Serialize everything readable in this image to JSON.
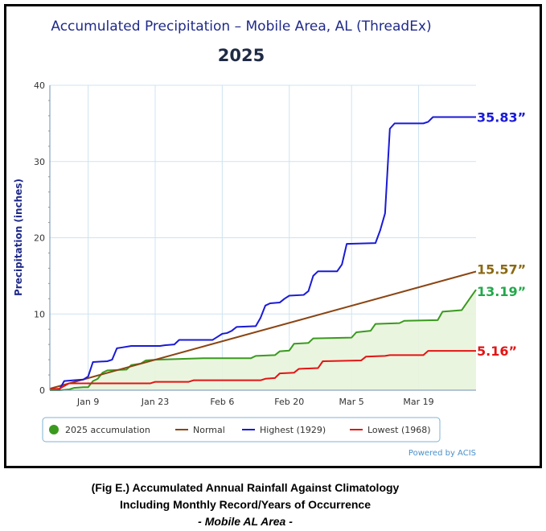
{
  "chart_data": {
    "type": "line",
    "title": "Accumulated Precipitation – Mobile Area, AL (ThreadEx)",
    "subtitle": "2025",
    "ylabel": "Precipitation (inches)",
    "ylim": [
      0,
      40
    ],
    "yticks": [
      "0",
      "10",
      "20",
      "30",
      "40"
    ],
    "xlim": [
      1,
      87
    ],
    "xticks": [
      {
        "day": 9,
        "label": "Jan 9"
      },
      {
        "day": 23,
        "label": "Jan 23"
      },
      {
        "day": 37,
        "label": "Feb 6"
      },
      {
        "day": 51,
        "label": "Feb 20"
      },
      {
        "day": 64,
        "label": "Mar 5"
      },
      {
        "day": 78,
        "label": "Mar 19"
      }
    ],
    "grid": true,
    "legend_position": "bottom",
    "series": [
      {
        "name": "2025 accumulation",
        "color": "#3a9a1e",
        "fill": "#e8f4dc",
        "values": [
          [
            1,
            0.0
          ],
          [
            3,
            0.0
          ],
          [
            5,
            0.1
          ],
          [
            6,
            0.3
          ],
          [
            8,
            0.4
          ],
          [
            9,
            0.4
          ],
          [
            10,
            1.2
          ],
          [
            11,
            1.5
          ],
          [
            12,
            2.3
          ],
          [
            13,
            2.6
          ],
          [
            17,
            2.7
          ],
          [
            18,
            3.3
          ],
          [
            20,
            3.5
          ],
          [
            21,
            3.9
          ],
          [
            23,
            4.0
          ],
          [
            33,
            4.2
          ],
          [
            43,
            4.2
          ],
          [
            44,
            4.5
          ],
          [
            48,
            4.6
          ],
          [
            49,
            5.1
          ],
          [
            51,
            5.2
          ],
          [
            52,
            6.1
          ],
          [
            55,
            6.2
          ],
          [
            56,
            6.8
          ],
          [
            64,
            6.9
          ],
          [
            65,
            7.6
          ],
          [
            68,
            7.8
          ],
          [
            69,
            8.7
          ],
          [
            74,
            8.8
          ],
          [
            75,
            9.1
          ],
          [
            82,
            9.2
          ],
          [
            83,
            10.3
          ],
          [
            87,
            10.5
          ],
          [
            89,
            12.3
          ],
          [
            90,
            13.19
          ]
        ]
      },
      {
        "name": "Normal",
        "color": "#8b4513",
        "values": [
          [
            1,
            0.2
          ],
          [
            90,
            15.57
          ]
        ]
      },
      {
        "name": "Highest (1929)",
        "color": "#1a1ad6",
        "values": [
          [
            1,
            0.1
          ],
          [
            3,
            0.1
          ],
          [
            4,
            1.2
          ],
          [
            6,
            1.3
          ],
          [
            8,
            1.4
          ],
          [
            9,
            1.8
          ],
          [
            10,
            3.7
          ],
          [
            13,
            3.8
          ],
          [
            14,
            4.0
          ],
          [
            15,
            5.5
          ],
          [
            16,
            5.6
          ],
          [
            18,
            5.8
          ],
          [
            24,
            5.8
          ],
          [
            25,
            5.9
          ],
          [
            27,
            6.0
          ],
          [
            28,
            6.6
          ],
          [
            35,
            6.6
          ],
          [
            36,
            7.0
          ],
          [
            37,
            7.4
          ],
          [
            38,
            7.5
          ],
          [
            39,
            7.8
          ],
          [
            40,
            8.3
          ],
          [
            44,
            8.4
          ],
          [
            45,
            9.5
          ],
          [
            46,
            11.1
          ],
          [
            47,
            11.4
          ],
          [
            49,
            11.5
          ],
          [
            50,
            12.0
          ],
          [
            51,
            12.4
          ],
          [
            54,
            12.5
          ],
          [
            55,
            13.0
          ],
          [
            56,
            15.0
          ],
          [
            57,
            15.6
          ],
          [
            61,
            15.6
          ],
          [
            62,
            16.5
          ],
          [
            63,
            19.2
          ],
          [
            69,
            19.3
          ],
          [
            70,
            21.0
          ],
          [
            71,
            23.2
          ],
          [
            72,
            34.3
          ],
          [
            73,
            35.0
          ],
          [
            79,
            35.0
          ],
          [
            80,
            35.2
          ],
          [
            81,
            35.83
          ],
          [
            90,
            35.83
          ]
        ]
      },
      {
        "name": "Lowest (1968)",
        "color": "#e31414",
        "values": [
          [
            1,
            0.1
          ],
          [
            3,
            0.2
          ],
          [
            5,
            0.9
          ],
          [
            22,
            0.9
          ],
          [
            23,
            1.1
          ],
          [
            30,
            1.1
          ],
          [
            31,
            1.3
          ],
          [
            45,
            1.3
          ],
          [
            46,
            1.5
          ],
          [
            48,
            1.6
          ],
          [
            49,
            2.2
          ],
          [
            52,
            2.3
          ],
          [
            53,
            2.8
          ],
          [
            57,
            2.9
          ],
          [
            58,
            3.8
          ],
          [
            66,
            3.9
          ],
          [
            67,
            4.4
          ],
          [
            71,
            4.5
          ],
          [
            72,
            4.6
          ],
          [
            79,
            4.6
          ],
          [
            80,
            5.16
          ],
          [
            90,
            5.16
          ]
        ]
      }
    ],
    "end_labels": [
      {
        "text": "35.83”",
        "color": "#1a1ad6",
        "y": 35.83
      },
      {
        "text": "15.57”",
        "color": "#8b6914",
        "y": 15.57
      },
      {
        "text": "13.19”",
        "color": "#22a84a",
        "y": 13.19
      },
      {
        "text": "5.16”",
        "color": "#e31414",
        "y": 5.16
      }
    ],
    "credit": "Powered by ACIS"
  },
  "caption": {
    "line1": "(Fig E.) Accumulated Annual Rainfall Against  Climatology",
    "line2": "Including Monthly Record/Years of Occurrence",
    "line3": "- Mobile AL Area -"
  }
}
